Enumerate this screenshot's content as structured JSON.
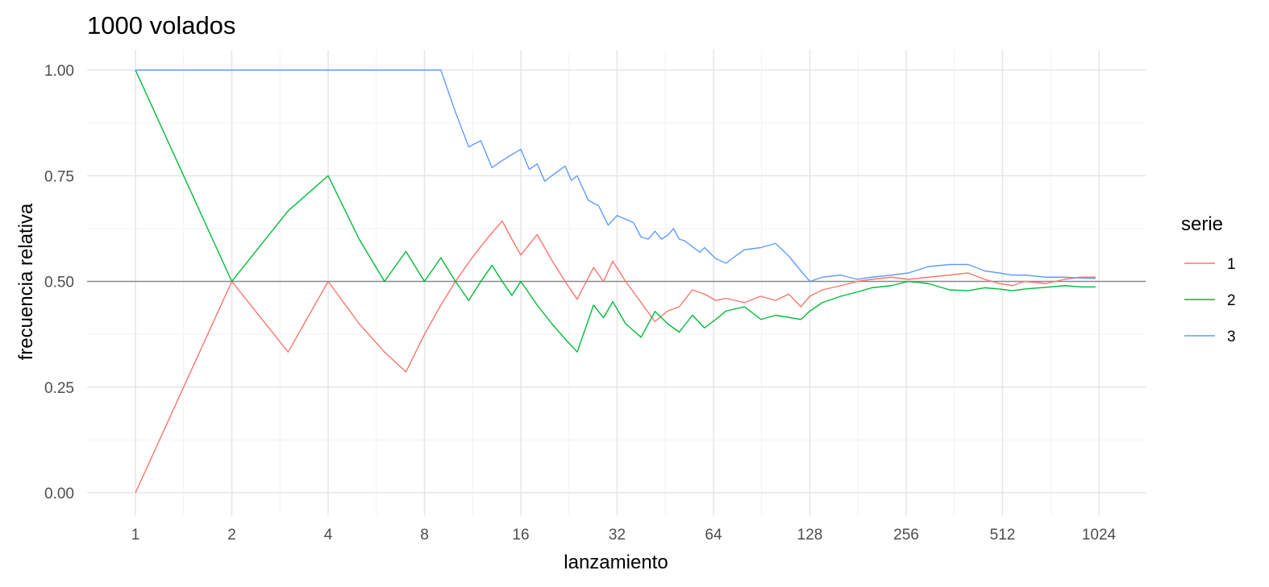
{
  "chart_data": {
    "type": "line",
    "title": "1000 volados",
    "xlabel": "lanzamiento",
    "ylabel": "frecuencia relativa",
    "x_scale": "log2",
    "xlim": [
      1,
      1000
    ],
    "ylim": [
      0,
      1
    ],
    "x_ticks": [
      1,
      2,
      4,
      8,
      16,
      32,
      64,
      128,
      256,
      512,
      1024
    ],
    "x_tick_labels": [
      "1",
      "2",
      "4",
      "8",
      "16",
      "32",
      "64",
      "128",
      "256",
      "512",
      "1024"
    ],
    "y_ticks": [
      0,
      0.25,
      0.5,
      0.75,
      1
    ],
    "y_tick_labels": [
      "0.00",
      "0.25",
      "0.50",
      "0.75",
      "1.00"
    ],
    "reference_line": {
      "y": 0.5,
      "color": "#8c8c8c"
    },
    "grid": true,
    "legend": {
      "title": "serie",
      "position": "right"
    },
    "series": [
      {
        "name": "1",
        "color": "#F8766D",
        "x": [
          1,
          2,
          3,
          4,
          5,
          6,
          7,
          8,
          9,
          10,
          11,
          12,
          13,
          14,
          15,
          16,
          18,
          20,
          22,
          24,
          27,
          29,
          31,
          34,
          38,
          42,
          46,
          50,
          55,
          60,
          65,
          70,
          80,
          90,
          100,
          110,
          120,
          128,
          140,
          160,
          180,
          200,
          230,
          260,
          300,
          350,
          400,
          450,
          500,
          550,
          600,
          700,
          800,
          900,
          1000
        ],
        "y": [
          0,
          0.5,
          0.333,
          0.5,
          0.4,
          0.333,
          0.286,
          0.375,
          0.444,
          0.5,
          0.545,
          0.583,
          0.615,
          0.643,
          0.6,
          0.5625,
          0.611,
          0.55,
          0.5,
          0.458,
          0.533,
          0.5,
          0.548,
          0.5,
          0.45,
          0.405,
          0.43,
          0.44,
          0.48,
          0.47,
          0.455,
          0.46,
          0.45,
          0.465,
          0.455,
          0.47,
          0.44,
          0.465,
          0.48,
          0.49,
          0.5,
          0.505,
          0.51,
          0.505,
          0.51,
          0.515,
          0.52,
          0.505,
          0.495,
          0.49,
          0.5,
          0.495,
          0.505,
          0.51,
          0.51
        ]
      },
      {
        "name": "2",
        "color": "#00BA38",
        "x": [
          1,
          2,
          3,
          4,
          5,
          6,
          7,
          8,
          9,
          10,
          11,
          12,
          13,
          14,
          15,
          16,
          18,
          20,
          22,
          24,
          27,
          29,
          31,
          34,
          38,
          42,
          46,
          50,
          55,
          60,
          65,
          70,
          80,
          90,
          100,
          110,
          120,
          128,
          140,
          160,
          180,
          200,
          230,
          260,
          300,
          350,
          400,
          450,
          500,
          550,
          600,
          700,
          800,
          900,
          1000
        ],
        "y": [
          1,
          0.5,
          0.667,
          0.75,
          0.6,
          0.5,
          0.571,
          0.5,
          0.556,
          0.5,
          0.455,
          0.5,
          0.538,
          0.5,
          0.467,
          0.5,
          0.444,
          0.4,
          0.364,
          0.333,
          0.444,
          0.414,
          0.452,
          0.4,
          0.368,
          0.429,
          0.4,
          0.38,
          0.42,
          0.39,
          0.41,
          0.43,
          0.44,
          0.41,
          0.42,
          0.415,
          0.41,
          0.43,
          0.45,
          0.465,
          0.475,
          0.485,
          0.49,
          0.5,
          0.495,
          0.48,
          0.478,
          0.485,
          0.482,
          0.478,
          0.482,
          0.486,
          0.49,
          0.487,
          0.487
        ]
      },
      {
        "name": "3",
        "color": "#619CFF",
        "x": [
          1,
          2,
          4,
          8,
          9,
          10,
          11,
          12,
          13,
          14,
          15,
          16,
          17,
          18,
          19,
          20,
          22,
          23,
          24,
          25,
          26,
          28,
          30,
          32,
          34,
          36,
          38,
          40,
          42,
          44,
          46,
          48,
          50,
          52,
          55,
          58,
          60,
          65,
          70,
          75,
          80,
          90,
          100,
          110,
          120,
          128,
          140,
          160,
          180,
          200,
          230,
          260,
          300,
          350,
          400,
          450,
          500,
          550,
          600,
          700,
          800,
          900,
          1000
        ],
        "y": [
          1,
          1,
          1,
          1,
          1,
          0.9,
          0.818,
          0.833,
          0.769,
          0.786,
          0.8,
          0.8125,
          0.765,
          0.778,
          0.737,
          0.75,
          0.773,
          0.739,
          0.75,
          0.72,
          0.692,
          0.679,
          0.633,
          0.656,
          0.647,
          0.639,
          0.605,
          0.6,
          0.619,
          0.6,
          0.609,
          0.625,
          0.6,
          0.596,
          0.582,
          0.569,
          0.58,
          0.554,
          0.543,
          0.56,
          0.575,
          0.58,
          0.59,
          0.56,
          0.525,
          0.5,
          0.51,
          0.515,
          0.505,
          0.51,
          0.515,
          0.52,
          0.535,
          0.54,
          0.54,
          0.525,
          0.52,
          0.515,
          0.515,
          0.51,
          0.51,
          0.508,
          0.507
        ]
      }
    ]
  }
}
